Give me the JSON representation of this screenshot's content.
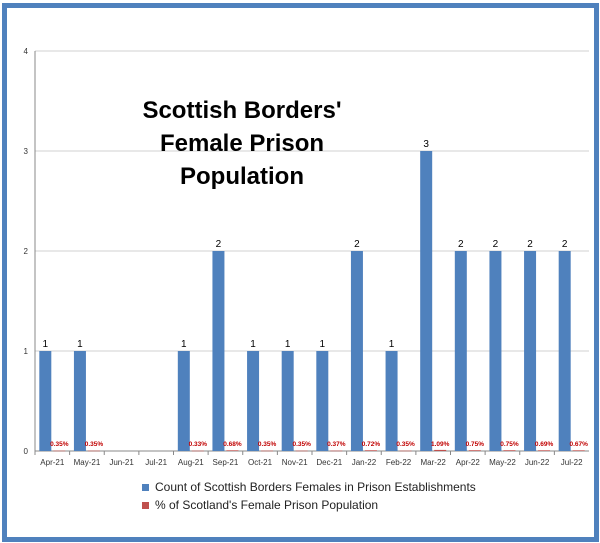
{
  "chart_data": {
    "type": "bar",
    "title": "Scottish Borders' Female Prison Population",
    "categories": [
      "Apr-21",
      "May-21",
      "Jun-21",
      "Jul-21",
      "Aug-21",
      "Sep-21",
      "Oct-21",
      "Nov-21",
      "Dec-21",
      "Jan-22",
      "Feb-22",
      "Mar-22",
      "Apr-22",
      "May-22",
      "Jun-22",
      "Jul-22"
    ],
    "series": [
      {
        "name": "Count of Scottish Borders Females in Prison Establishments",
        "color": "#4f81bd",
        "values": [
          1,
          1,
          null,
          null,
          1,
          2,
          1,
          1,
          1,
          2,
          1,
          3,
          2,
          2,
          2,
          2
        ],
        "labels": [
          "1",
          "1",
          "",
          "",
          "1",
          "2",
          "1",
          "1",
          "1",
          "2",
          "1",
          "3",
          "2",
          "2",
          "2",
          "2"
        ]
      },
      {
        "name": "% of Scotland's Female Prison Population",
        "color": "#c0504d",
        "values": [
          0.0035,
          0.0035,
          null,
          null,
          0.0033,
          0.0068,
          0.0035,
          0.0035,
          0.0037,
          0.0072,
          0.0035,
          0.0109,
          0.0075,
          0.0075,
          0.0069,
          0.0067
        ],
        "labels": [
          "0.35%",
          "0.35%",
          "",
          "",
          "0.33%",
          "0.68%",
          "0.35%",
          "0.35%",
          "0.37%",
          "0.72%",
          "0.35%",
          "1.09%",
          "0.75%",
          "0.75%",
          "0.69%",
          "0.67%"
        ]
      }
    ],
    "ylim": [
      0,
      4
    ],
    "yticks": [
      "0",
      "1",
      "2",
      "3",
      "4"
    ],
    "grid": true,
    "legend": "bottom"
  }
}
